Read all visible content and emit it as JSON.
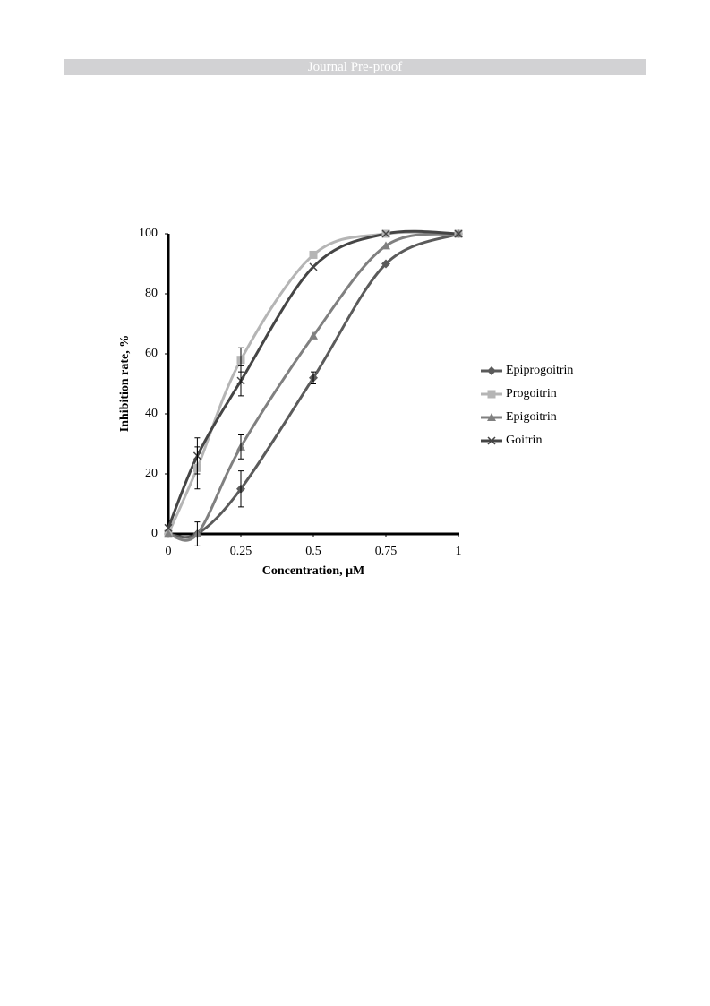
{
  "header": {
    "label": "Journal Pre-proof"
  },
  "chart_data": {
    "type": "line",
    "x_label": "Concentration, μM",
    "y_label": "Inhibition rate, %",
    "x": [
      0,
      0.1,
      0.25,
      0.5,
      0.75,
      1
    ],
    "xlim": [
      0,
      1
    ],
    "xticks": [
      0,
      0.25,
      0.5,
      0.75,
      1
    ],
    "ylim": [
      0,
      100
    ],
    "yticks": [
      0,
      20,
      40,
      60,
      80,
      100
    ],
    "legend": "right",
    "series": [
      {
        "name": "Epiprogoitrin",
        "color": "#5b5b5b",
        "marker": "diamond",
        "values": [
          0,
          0,
          15,
          52,
          90,
          100
        ],
        "errors": [
          null,
          null,
          6,
          2,
          null,
          null
        ]
      },
      {
        "name": "Progoitrin",
        "color": "#b5b5b5",
        "marker": "square",
        "values": [
          0,
          22,
          58,
          93,
          100,
          100
        ],
        "errors": [
          null,
          7,
          4,
          null,
          null,
          null
        ]
      },
      {
        "name": "Epigoitrin",
        "color": "#808080",
        "marker": "triangle",
        "values": [
          0,
          0,
          29,
          66,
          96,
          100
        ],
        "errors": [
          null,
          4,
          4,
          null,
          null,
          null
        ]
      },
      {
        "name": "Goitrin",
        "color": "#454545",
        "marker": "cross",
        "values": [
          2,
          26,
          51,
          89,
          100,
          100
        ],
        "errors": [
          null,
          6,
          5,
          null,
          null,
          null
        ]
      }
    ]
  }
}
